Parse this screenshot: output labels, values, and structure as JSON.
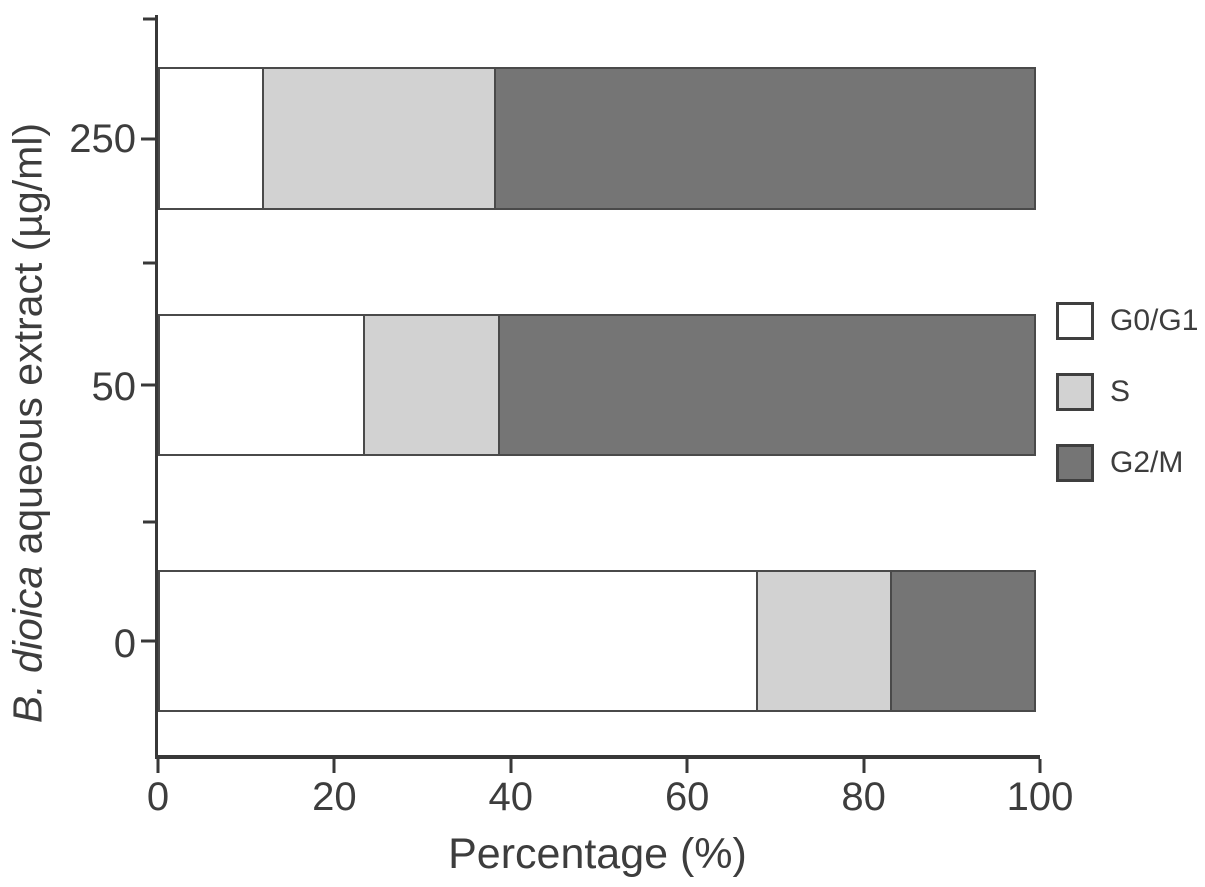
{
  "chart_data": {
    "type": "bar",
    "orientation": "horizontal",
    "stacked": true,
    "title": "",
    "xlabel": "Percentage (%)",
    "ylabel": "B. dioica aqueous extract (µg/ml)",
    "ylabel_italic": "B. dioica",
    "ylabel_rest": " aqueous extract (µg/ml)",
    "categories": [
      "250",
      "50",
      "0"
    ],
    "series": [
      {
        "name": "G0/G1",
        "color": "#ffffff",
        "values": [
          12,
          23.5,
          68
        ]
      },
      {
        "name": "S",
        "color": "#d2d2d2",
        "values": [
          26.5,
          15.5,
          15.5
        ]
      },
      {
        "name": "G2/M",
        "color": "#757575",
        "values": [
          61.5,
          61,
          16.5
        ]
      }
    ],
    "xlim": [
      0,
      100
    ],
    "xticks": [
      0,
      20,
      40,
      60,
      80,
      100
    ],
    "grid": false,
    "legend": {
      "position": "right",
      "entries": [
        "G0/G1",
        "S",
        "G2/M"
      ]
    },
    "colors": {
      "axis": "#383838",
      "segment_border": "#4a4a4a",
      "text": "#3d3d3d"
    }
  }
}
